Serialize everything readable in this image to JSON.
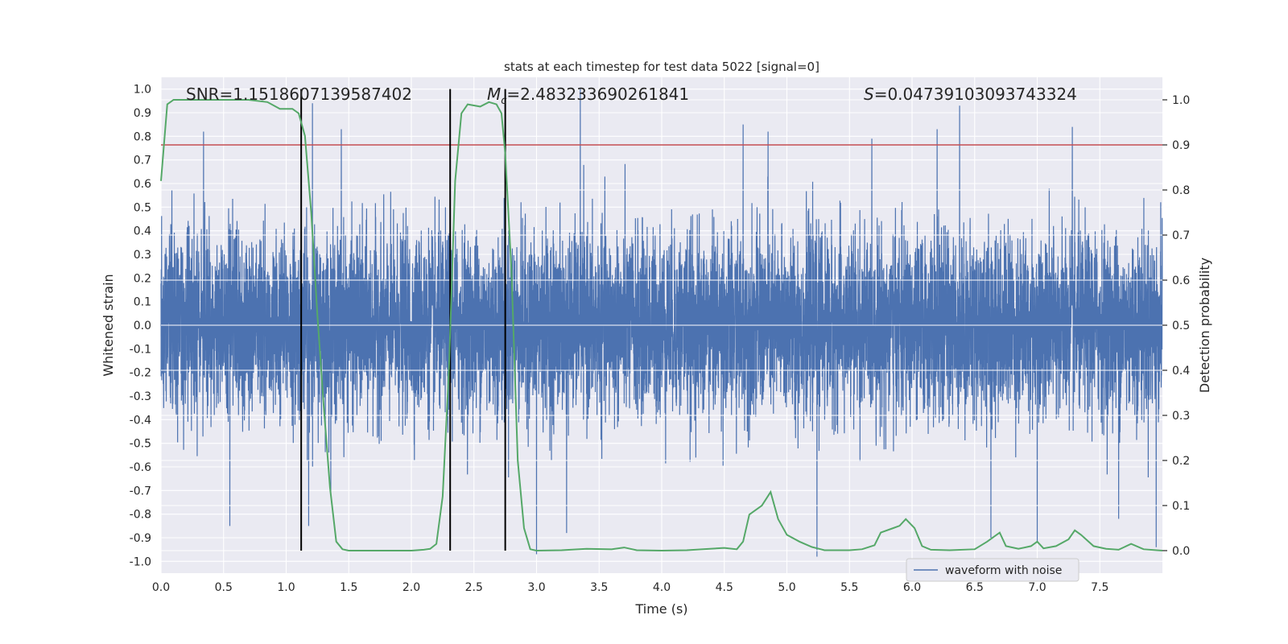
{
  "chart_data": {
    "type": "line",
    "title": "stats at each timestep for test data 5022 [signal=0]",
    "xlabel": "Time (s)",
    "ylabel": "Whitened strain",
    "y2label": "Detection probability",
    "xlim": [
      0.0,
      8.0
    ],
    "ylim": [
      -1.05,
      1.05
    ],
    "y2lim": [
      -0.05,
      1.05
    ],
    "x_ticks": [
      "0.0",
      "0.5",
      "1.0",
      "1.5",
      "2.0",
      "2.5",
      "3.0",
      "3.5",
      "4.0",
      "4.5",
      "5.0",
      "5.5",
      "6.0",
      "6.5",
      "7.0",
      "7.5"
    ],
    "y_ticks": [
      "1.0",
      "0.9",
      "0.8",
      "0.7",
      "0.6",
      "0.5",
      "0.4",
      "0.3",
      "0.2",
      "0.1",
      "0.0",
      "-0.1",
      "-0.2",
      "-0.3",
      "-0.4",
      "-0.5",
      "-0.6",
      "-0.7",
      "-0.8",
      "-0.9",
      "-1.0"
    ],
    "y2_ticks": [
      "1.0",
      "0.9",
      "0.8",
      "0.7",
      "0.6",
      "0.5",
      "0.4",
      "0.3",
      "0.2",
      "0.1",
      "0.0"
    ],
    "grid": true,
    "legend_position": "lower-right",
    "stats": {
      "snr": "SNR=1.1518607139587402",
      "mc_symbol": "M",
      "mc_subscript": "c",
      "mc_value": "=2.483233690261841",
      "s_symbol": "S",
      "s_value": "=0.04739103093743324"
    },
    "threshold": {
      "y2": 0.9,
      "color": "#c44e52"
    },
    "vertical_lines": [
      1.12,
      2.31,
      2.75
    ],
    "series": [
      {
        "name": "waveform with noise",
        "color": "#4c72b0",
        "sample_rate": 1024,
        "typical_amplitude": 0.4,
        "notable_peaks": [
          {
            "x": 0.34,
            "y": 0.82
          },
          {
            "x": 1.21,
            "y": 0.94
          },
          {
            "x": 1.44,
            "y": 0.83
          },
          {
            "x": 3.0,
            "y": 0.86
          },
          {
            "x": 3.35,
            "y": 1.0
          },
          {
            "x": 4.65,
            "y": 0.85
          },
          {
            "x": 4.85,
            "y": 0.82
          },
          {
            "x": 6.2,
            "y": 0.83
          },
          {
            "x": 6.38,
            "y": 0.93
          },
          {
            "x": 7.28,
            "y": 0.84
          },
          {
            "x": 0.55,
            "y": -0.85
          },
          {
            "x": 1.18,
            "y": -0.85
          },
          {
            "x": 3.0,
            "y": -0.97
          },
          {
            "x": 3.24,
            "y": -0.88
          },
          {
            "x": 5.24,
            "y": -0.98
          },
          {
            "x": 6.63,
            "y": -0.9
          },
          {
            "x": 7.0,
            "y": -0.92
          },
          {
            "x": 7.65,
            "y": -0.82
          },
          {
            "x": 7.95,
            "y": -0.94
          }
        ]
      },
      {
        "name": "Detection probability",
        "color": "#55a868",
        "axis": "y2",
        "points": [
          [
            0.0,
            0.82
          ],
          [
            0.05,
            0.99
          ],
          [
            0.1,
            1.0
          ],
          [
            0.3,
            1.0
          ],
          [
            0.5,
            1.0
          ],
          [
            0.7,
            1.0
          ],
          [
            0.85,
            0.995
          ],
          [
            0.95,
            0.98
          ],
          [
            1.05,
            0.98
          ],
          [
            1.1,
            0.97
          ],
          [
            1.15,
            0.92
          ],
          [
            1.2,
            0.75
          ],
          [
            1.25,
            0.52
          ],
          [
            1.3,
            0.32
          ],
          [
            1.35,
            0.14
          ],
          [
            1.4,
            0.02
          ],
          [
            1.45,
            0.003
          ],
          [
            1.5,
            0.0
          ],
          [
            1.6,
            0.0
          ],
          [
            1.8,
            0.0
          ],
          [
            2.0,
            0.0
          ],
          [
            2.1,
            0.002
          ],
          [
            2.15,
            0.004
          ],
          [
            2.2,
            0.015
          ],
          [
            2.25,
            0.12
          ],
          [
            2.3,
            0.4
          ],
          [
            2.35,
            0.82
          ],
          [
            2.4,
            0.97
          ],
          [
            2.45,
            0.99
          ],
          [
            2.55,
            0.985
          ],
          [
            2.62,
            0.995
          ],
          [
            2.68,
            0.99
          ],
          [
            2.72,
            0.97
          ],
          [
            2.75,
            0.88
          ],
          [
            2.8,
            0.62
          ],
          [
            2.85,
            0.2
          ],
          [
            2.9,
            0.05
          ],
          [
            2.95,
            0.003
          ],
          [
            3.0,
            0.0
          ],
          [
            3.2,
            0.001
          ],
          [
            3.4,
            0.004
          ],
          [
            3.6,
            0.003
          ],
          [
            3.7,
            0.007
          ],
          [
            3.8,
            0.001
          ],
          [
            4.0,
            0.0
          ],
          [
            4.2,
            0.001
          ],
          [
            4.5,
            0.006
          ],
          [
            4.6,
            0.003
          ],
          [
            4.65,
            0.02
          ],
          [
            4.7,
            0.08
          ],
          [
            4.8,
            0.1
          ],
          [
            4.87,
            0.13
          ],
          [
            4.93,
            0.07
          ],
          [
            5.0,
            0.035
          ],
          [
            5.1,
            0.02
          ],
          [
            5.2,
            0.008
          ],
          [
            5.3,
            0.001
          ],
          [
            5.5,
            0.001
          ],
          [
            5.6,
            0.003
          ],
          [
            5.7,
            0.012
          ],
          [
            5.75,
            0.04
          ],
          [
            5.85,
            0.05
          ],
          [
            5.9,
            0.055
          ],
          [
            5.95,
            0.07
          ],
          [
            6.02,
            0.05
          ],
          [
            6.08,
            0.01
          ],
          [
            6.15,
            0.002
          ],
          [
            6.3,
            0.001
          ],
          [
            6.5,
            0.003
          ],
          [
            6.6,
            0.02
          ],
          [
            6.7,
            0.04
          ],
          [
            6.75,
            0.01
          ],
          [
            6.85,
            0.004
          ],
          [
            6.95,
            0.01
          ],
          [
            7.0,
            0.02
          ],
          [
            7.05,
            0.005
          ],
          [
            7.15,
            0.01
          ],
          [
            7.25,
            0.025
          ],
          [
            7.3,
            0.045
          ],
          [
            7.35,
            0.035
          ],
          [
            7.45,
            0.01
          ],
          [
            7.55,
            0.004
          ],
          [
            7.65,
            0.002
          ],
          [
            7.75,
            0.015
          ],
          [
            7.85,
            0.003
          ],
          [
            8.0,
            0.0
          ]
        ]
      }
    ]
  }
}
